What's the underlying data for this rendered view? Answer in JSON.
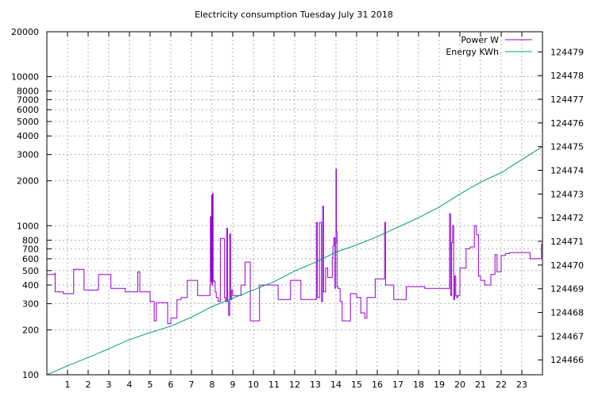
{
  "chart_data": {
    "type": "line",
    "title": "Electricity consumption Tuesday July 31 2018",
    "xlabel": "",
    "ylabel": "",
    "y2label": "",
    "x_ticks": [
      "1",
      "2",
      "3",
      "4",
      "5",
      "6",
      "7",
      "8",
      "9",
      "10",
      "11",
      "12",
      "13",
      "14",
      "15",
      "16",
      "17",
      "18",
      "19",
      "20",
      "21",
      "22",
      "23"
    ],
    "xlim": [
      0,
      24
    ],
    "y_scale": "log",
    "ylim": [
      100,
      20000
    ],
    "y_ticks": [
      {
        "value": 100,
        "label": "100"
      },
      {
        "value": 200,
        "label": "200"
      },
      {
        "value": 300,
        "label": "300"
      },
      {
        "value": 400,
        "label": "400"
      },
      {
        "value": 500,
        "label": "500"
      },
      {
        "value": 600,
        "label": "600"
      },
      {
        "value": 700,
        "label": "700"
      },
      {
        "value": 800,
        "label": "800"
      },
      {
        "value": 1000,
        "label": "1000"
      },
      {
        "value": 2000,
        "label": "2000"
      },
      {
        "value": 3000,
        "label": "3000"
      },
      {
        "value": 4000,
        "label": "4000"
      },
      {
        "value": 5000,
        "label": "5000"
      },
      {
        "value": 6000,
        "label": "6000"
      },
      {
        "value": 7000,
        "label": "7000"
      },
      {
        "value": 8000,
        "label": "8000"
      },
      {
        "value": 10000,
        "label": "10000"
      },
      {
        "value": 20000,
        "label": "20000"
      }
    ],
    "y2lim": [
      124465.37,
      124479.85
    ],
    "y2_ticks": [
      "124466",
      "124467",
      "124468",
      "124469",
      "124470",
      "124471",
      "124472",
      "124473",
      "124474",
      "124475",
      "124476",
      "124477",
      "124478",
      "124479"
    ],
    "grid": true,
    "legend_position": "top-right",
    "series": [
      {
        "name": "Power W",
        "color": "#9400d3",
        "axis": "y",
        "step": true,
        "x": [
          0,
          0.35,
          0.38,
          0.4,
          0.8,
          1.3,
          1.8,
          2.5,
          3.1,
          3.8,
          4.4,
          4.5,
          5.0,
          5.2,
          5.3,
          5.8,
          5.85,
          6.0,
          6.3,
          6.5,
          6.8,
          7.0,
          7.3,
          7.7,
          7.9,
          7.92,
          7.95,
          7.98,
          8.0,
          8.03,
          8.05,
          8.1,
          8.13,
          8.15,
          8.2,
          8.3,
          8.4,
          8.6,
          8.65,
          8.7,
          8.75,
          8.8,
          8.85,
          8.9,
          8.95,
          9.0,
          9.05,
          9.1,
          9.4,
          9.6,
          9.85,
          9.9,
          10.3,
          10.6,
          11.2,
          11.8,
          12.3,
          12.8,
          13.0,
          13.05,
          13.1,
          13.2,
          13.3,
          13.35,
          13.4,
          13.5,
          13.6,
          13.8,
          13.82,
          13.85,
          13.9,
          13.95,
          13.97,
          14.0,
          14.02,
          14.05,
          14.1,
          14.2,
          14.3,
          14.7,
          15.0,
          15.2,
          15.4,
          15.5,
          15.9,
          16.3,
          16.35,
          16.4,
          16.8,
          17.4,
          18.3,
          19.4,
          19.5,
          19.55,
          19.6,
          19.65,
          19.7,
          19.75,
          19.8,
          19.85,
          19.9,
          20.0,
          20.2,
          20.3,
          20.5,
          20.7,
          20.8,
          20.9,
          21.0,
          21.2,
          21.5,
          21.7,
          21.8,
          22.0,
          22.1,
          22.2,
          22.4,
          23.1,
          23.4,
          23.95
        ],
        "values": [
          470,
          470,
          480,
          360,
          350,
          510,
          370,
          470,
          380,
          360,
          490,
          360,
          310,
          230,
          305,
          305,
          220,
          240,
          320,
          330,
          430,
          430,
          340,
          340,
          400,
          1150,
          420,
          1600,
          400,
          1650,
          430,
          420,
          420,
          360,
          330,
          310,
          820,
          330,
          310,
          960,
          310,
          250,
          880,
          320,
          370,
          340,
          340,
          340,
          400,
          570,
          230,
          230,
          400,
          400,
          320,
          430,
          320,
          320,
          320,
          1050,
          330,
          1050,
          310,
          1350,
          360,
          520,
          450,
          450,
          610,
          730,
          830,
          380,
          760,
          2400,
          910,
          390,
          380,
          310,
          230,
          350,
          330,
          260,
          240,
          330,
          440,
          440,
          1050,
          400,
          320,
          390,
          380,
          380,
          1200,
          340,
          770,
          1000,
          320,
          460,
          340,
          330,
          340,
          520,
          520,
          700,
          720,
          1000,
          870,
          460,
          430,
          400,
          470,
          640,
          490,
          630,
          630,
          650,
          660,
          660,
          600,
          750
        ]
      },
      {
        "name": "Energy KWh",
        "color": "#009e73",
        "axis": "y2",
        "step": false,
        "x": [
          0,
          1,
          2,
          3,
          4,
          5,
          6,
          7,
          8,
          9,
          10,
          11,
          12,
          13,
          14,
          15,
          16,
          17,
          18,
          19,
          20,
          21,
          22,
          23,
          24
        ],
        "values": [
          124465.37,
          124465.75,
          124466.1,
          124466.47,
          124466.85,
          124467.15,
          124467.42,
          124467.8,
          124468.25,
          124468.6,
          124468.95,
          124469.3,
          124469.75,
          124470.12,
          124470.55,
          124470.85,
          124471.2,
          124471.6,
          124472.0,
          124472.45,
          124473.0,
          124473.5,
          124473.9,
          124474.45,
          124475.0
        ]
      }
    ]
  }
}
